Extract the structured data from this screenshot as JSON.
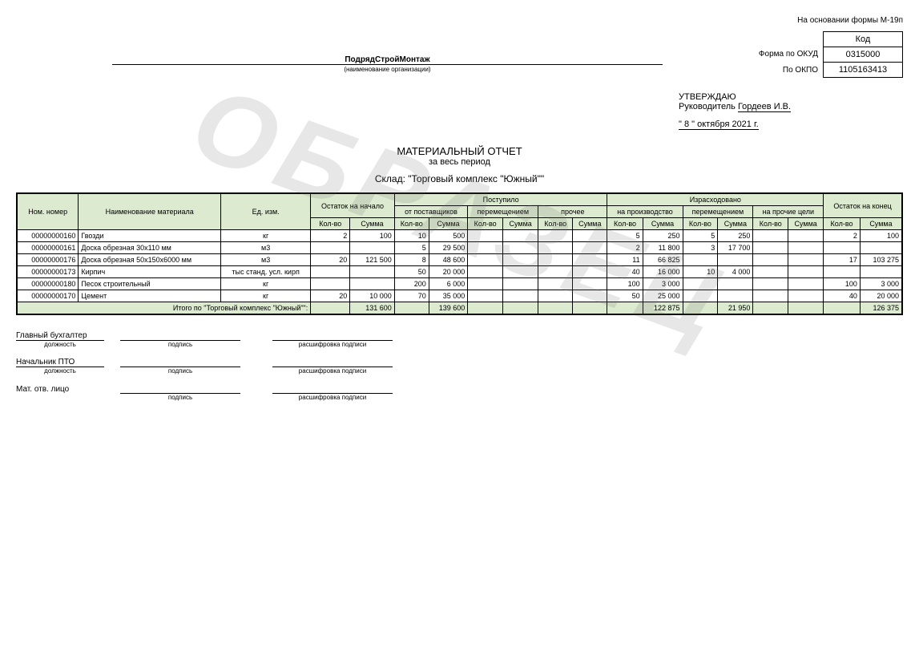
{
  "form_basis": "На основании формы М-19п",
  "organization": {
    "name": "ПодрядСтройМонтаж",
    "sublabel": "(наименование организации)"
  },
  "codes": {
    "header": "Код",
    "okud_label": "Форма по ОКУД",
    "okud_value": "0315000",
    "okpo_label": "По ОКПО",
    "okpo_value": "1105163413"
  },
  "approval": {
    "approve": "УТВЕРЖДАЮ",
    "role": "Руководитель",
    "name": "Гордеев И.В.",
    "date": "\" 8 \"  октября   2021 г."
  },
  "title": {
    "main": "МАТЕРИАЛЬНЫЙ ОТЧЕТ",
    "period": "за весь период",
    "warehouse": "Склад: \"Торговый комплекс \"Южный\"\""
  },
  "watermark": "ОБРАЗЕЦ",
  "table": {
    "headers": {
      "nom": "Ном. номер",
      "name": "Наименование материала",
      "unit": "Ед. изм.",
      "start": "Остаток на начало",
      "incoming": "Поступило",
      "in_suppliers": "от поставщиков",
      "in_move": "перемещением",
      "in_other": "прочее",
      "outgoing": "Израсходовано",
      "out_prod": "на производство",
      "out_move": "перемещением",
      "out_other": "на прочие цели",
      "end": "Остаток на конец",
      "qty": "Кол-во",
      "sum": "Сумма"
    },
    "rows": [
      {
        "nom": "00000000160",
        "name": "Гвозди",
        "unit": "кг",
        "start_qty": "2",
        "start_sum": "100",
        "sup_qty": "10",
        "sup_sum": "500",
        "mvi_qty": "",
        "mvi_sum": "",
        "oth_qty": "",
        "oth_sum": "",
        "prod_qty": "5",
        "prod_sum": "250",
        "mvo_qty": "5",
        "mvo_sum": "250",
        "otho_qty": "",
        "otho_sum": "",
        "end_qty": "2",
        "end_sum": "100"
      },
      {
        "nom": "00000000161",
        "name": "Доска обрезная 30х110 мм",
        "unit": "м3",
        "start_qty": "",
        "start_sum": "",
        "sup_qty": "5",
        "sup_sum": "29 500",
        "mvi_qty": "",
        "mvi_sum": "",
        "oth_qty": "",
        "oth_sum": "",
        "prod_qty": "2",
        "prod_sum": "11 800",
        "mvo_qty": "3",
        "mvo_sum": "17 700",
        "otho_qty": "",
        "otho_sum": "",
        "end_qty": "",
        "end_sum": ""
      },
      {
        "nom": "00000000176",
        "name": "Доска обрезная 50х150х6000 мм",
        "unit": "м3",
        "start_qty": "20",
        "start_sum": "121 500",
        "sup_qty": "8",
        "sup_sum": "48 600",
        "mvi_qty": "",
        "mvi_sum": "",
        "oth_qty": "",
        "oth_sum": "",
        "prod_qty": "11",
        "prod_sum": "66 825",
        "mvo_qty": "",
        "mvo_sum": "",
        "otho_qty": "",
        "otho_sum": "",
        "end_qty": "17",
        "end_sum": "103 275"
      },
      {
        "nom": "00000000173",
        "name": "Кирпич",
        "unit": "тыс станд. усл. кирп",
        "start_qty": "",
        "start_sum": "",
        "sup_qty": "50",
        "sup_sum": "20 000",
        "mvi_qty": "",
        "mvi_sum": "",
        "oth_qty": "",
        "oth_sum": "",
        "prod_qty": "40",
        "prod_sum": "16 000",
        "mvo_qty": "10",
        "mvo_sum": "4 000",
        "otho_qty": "",
        "otho_sum": "",
        "end_qty": "",
        "end_sum": ""
      },
      {
        "nom": "00000000180",
        "name": "Песок строительный",
        "unit": "кг",
        "start_qty": "",
        "start_sum": "",
        "sup_qty": "200",
        "sup_sum": "6 000",
        "mvi_qty": "",
        "mvi_sum": "",
        "oth_qty": "",
        "oth_sum": "",
        "prod_qty": "100",
        "prod_sum": "3 000",
        "mvo_qty": "",
        "mvo_sum": "",
        "otho_qty": "",
        "otho_sum": "",
        "end_qty": "100",
        "end_sum": "3 000"
      },
      {
        "nom": "00000000170",
        "name": "Цемент",
        "unit": "кг",
        "start_qty": "20",
        "start_sum": "10 000",
        "sup_qty": "70",
        "sup_sum": "35 000",
        "mvi_qty": "",
        "mvi_sum": "",
        "oth_qty": "",
        "oth_sum": "",
        "prod_qty": "50",
        "prod_sum": "25 000",
        "mvo_qty": "",
        "mvo_sum": "",
        "otho_qty": "",
        "otho_sum": "",
        "end_qty": "40",
        "end_sum": "20 000"
      }
    ],
    "total": {
      "label": "Итого по \"Торговый комплекс \"Южный\"\":",
      "start_sum": "131 600",
      "sup_sum": "139 600",
      "prod_sum": "122 875",
      "mvo_sum": "21 950",
      "end_sum": "126 375"
    }
  },
  "signatures": {
    "accountant": {
      "label": "Главный бухгалтер",
      "sub_role": "должность",
      "sub_sign": "подпись",
      "sub_decode": "расшифровка подписи"
    },
    "pto": {
      "label": "Начальник ПТО",
      "sub_role": "должность",
      "sub_sign": "подпись",
      "sub_decode": "расшифровка подписи"
    },
    "response": {
      "label": "Мат. отв. лицо",
      "sub_sign": "подпись",
      "sub_decode": "расшифровка подписи"
    }
  },
  "styling": {
    "header_bg": "#dceacf",
    "border_color": "#000000",
    "font_size_body": 10,
    "font_size_table": 9,
    "font_size_title": 13,
    "watermark_color": "rgba(120,120,120,0.18)"
  }
}
